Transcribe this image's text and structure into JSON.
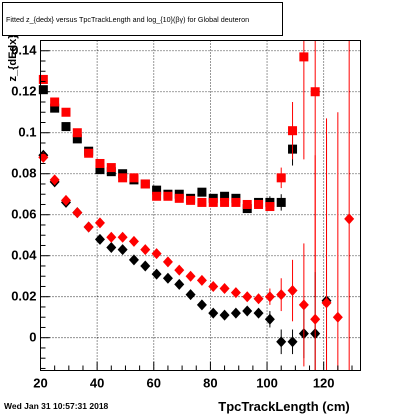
{
  "page": {
    "title": "Fitted  z_{dedx}  versus TpcTrackLength and log_{10}(βγ) for Global deuteron",
    "timestamp": "Wed Jan 31 10:57:31 2018"
  },
  "chart_data": {
    "type": "scatter",
    "title": "Fitted  z_{dedx}  versus TpcTrackLength and log_{10}(βγ) for Global deuteron",
    "xlabel": "TpcTrackLength (cm)",
    "ylabel": "z_{dEdx}",
    "xlim": [
      20,
      133
    ],
    "ylim": [
      -0.016,
      0.145
    ],
    "xticks": [
      20,
      40,
      60,
      80,
      100,
      120
    ],
    "yticks": [
      0,
      0.02,
      0.04,
      0.06,
      0.08,
      0.1,
      0.12,
      0.14
    ],
    "ytick_labels": [
      "0",
      "0.02",
      "0.04",
      "0.06",
      "0.08",
      "0.1",
      "0.12",
      "0.14"
    ],
    "grid": true,
    "colors": {
      "black": "#000000",
      "red": "#ff0000"
    },
    "series": [
      {
        "marker": "square",
        "color": "#000000",
        "x": [
          21,
          25,
          29,
          33,
          37,
          41,
          45,
          49,
          53,
          57,
          61,
          65,
          69,
          73,
          77,
          81,
          85,
          89,
          93,
          97,
          101,
          105,
          109
        ],
        "y": [
          0.121,
          0.112,
          0.103,
          0.097,
          0.091,
          0.082,
          0.081,
          0.08,
          0.077,
          0.075,
          0.072,
          0.07,
          0.07,
          0.068,
          0.071,
          0.068,
          0.069,
          0.068,
          0.063,
          0.066,
          0.066,
          0.066,
          0.092
        ],
        "err": [
          0.002,
          0.002,
          0.002,
          0.002,
          0.002,
          0.002,
          0.002,
          0.002,
          0.002,
          0.002,
          0.002,
          0.002,
          0.002,
          0.002,
          0.002,
          0.002,
          0.002,
          0.002,
          0.002,
          0.002,
          0.003,
          0.004,
          0.008
        ]
      },
      {
        "marker": "square",
        "color": "#ff0000",
        "x": [
          21,
          25,
          29,
          33,
          37,
          41,
          45,
          49,
          53,
          57,
          61,
          65,
          69,
          73,
          77,
          81,
          85,
          89,
          93,
          97,
          101,
          105,
          109,
          113,
          117
        ],
        "y": [
          0.126,
          0.115,
          0.11,
          0.1,
          0.09,
          0.085,
          0.083,
          0.078,
          0.078,
          0.075,
          0.069,
          0.069,
          0.068,
          0.067,
          0.066,
          0.066,
          0.066,
          0.066,
          0.065,
          0.065,
          0.064,
          0.078,
          0.101,
          0.137,
          0.12
        ],
        "err": [
          0.002,
          0.002,
          0.002,
          0.002,
          0.002,
          0.002,
          0.002,
          0.002,
          0.002,
          0.002,
          0.002,
          0.002,
          0.002,
          0.002,
          0.002,
          0.002,
          0.002,
          0.002,
          0.002,
          0.002,
          0.002,
          0.005,
          0.014,
          0.05,
          0.1
        ]
      },
      {
        "marker": "diamond",
        "color": "#000000",
        "x": [
          21,
          25,
          29,
          33,
          37,
          41,
          45,
          49,
          53,
          57,
          61,
          65,
          69,
          73,
          77,
          81,
          85,
          89,
          93,
          97,
          101,
          105,
          109,
          113,
          117,
          121
        ],
        "y": [
          0.089,
          0.076,
          0.066,
          0.061,
          0.054,
          0.048,
          0.044,
          0.043,
          0.038,
          0.035,
          0.031,
          0.029,
          0.026,
          0.021,
          0.016,
          0.012,
          0.011,
          0.012,
          0.013,
          0.012,
          0.009,
          -0.002,
          -0.002,
          0.002,
          0.002,
          0.018
        ],
        "err": [
          0.002,
          0.002,
          0.002,
          0.002,
          0.002,
          0.002,
          0.002,
          0.002,
          0.002,
          0.002,
          0.002,
          0.002,
          0.002,
          0.002,
          0.002,
          0.002,
          0.002,
          0.002,
          0.002,
          0.002,
          0.004,
          0.006,
          0.006,
          0.012,
          0.03,
          0.08
        ]
      },
      {
        "marker": "diamond",
        "color": "#ff0000",
        "x": [
          21,
          25,
          29,
          33,
          37,
          41,
          45,
          49,
          53,
          57,
          61,
          65,
          69,
          73,
          77,
          81,
          85,
          89,
          93,
          97,
          101,
          105,
          109,
          113,
          117,
          121,
          125,
          129
        ],
        "y": [
          0.088,
          0.077,
          0.067,
          0.061,
          0.054,
          0.056,
          0.049,
          0.049,
          0.047,
          0.043,
          0.041,
          0.037,
          0.033,
          0.03,
          0.028,
          0.025,
          0.024,
          0.022,
          0.02,
          0.019,
          0.02,
          0.021,
          0.023,
          0.016,
          0.009,
          0.017,
          0.01,
          0.058
        ],
        "err": [
          0.002,
          0.002,
          0.002,
          0.002,
          0.002,
          0.002,
          0.002,
          0.002,
          0.002,
          0.002,
          0.002,
          0.002,
          0.002,
          0.002,
          0.002,
          0.002,
          0.002,
          0.002,
          0.002,
          0.002,
          0.004,
          0.008,
          0.015,
          0.03,
          0.08,
          0.09,
          0.1,
          0.12
        ]
      }
    ]
  }
}
